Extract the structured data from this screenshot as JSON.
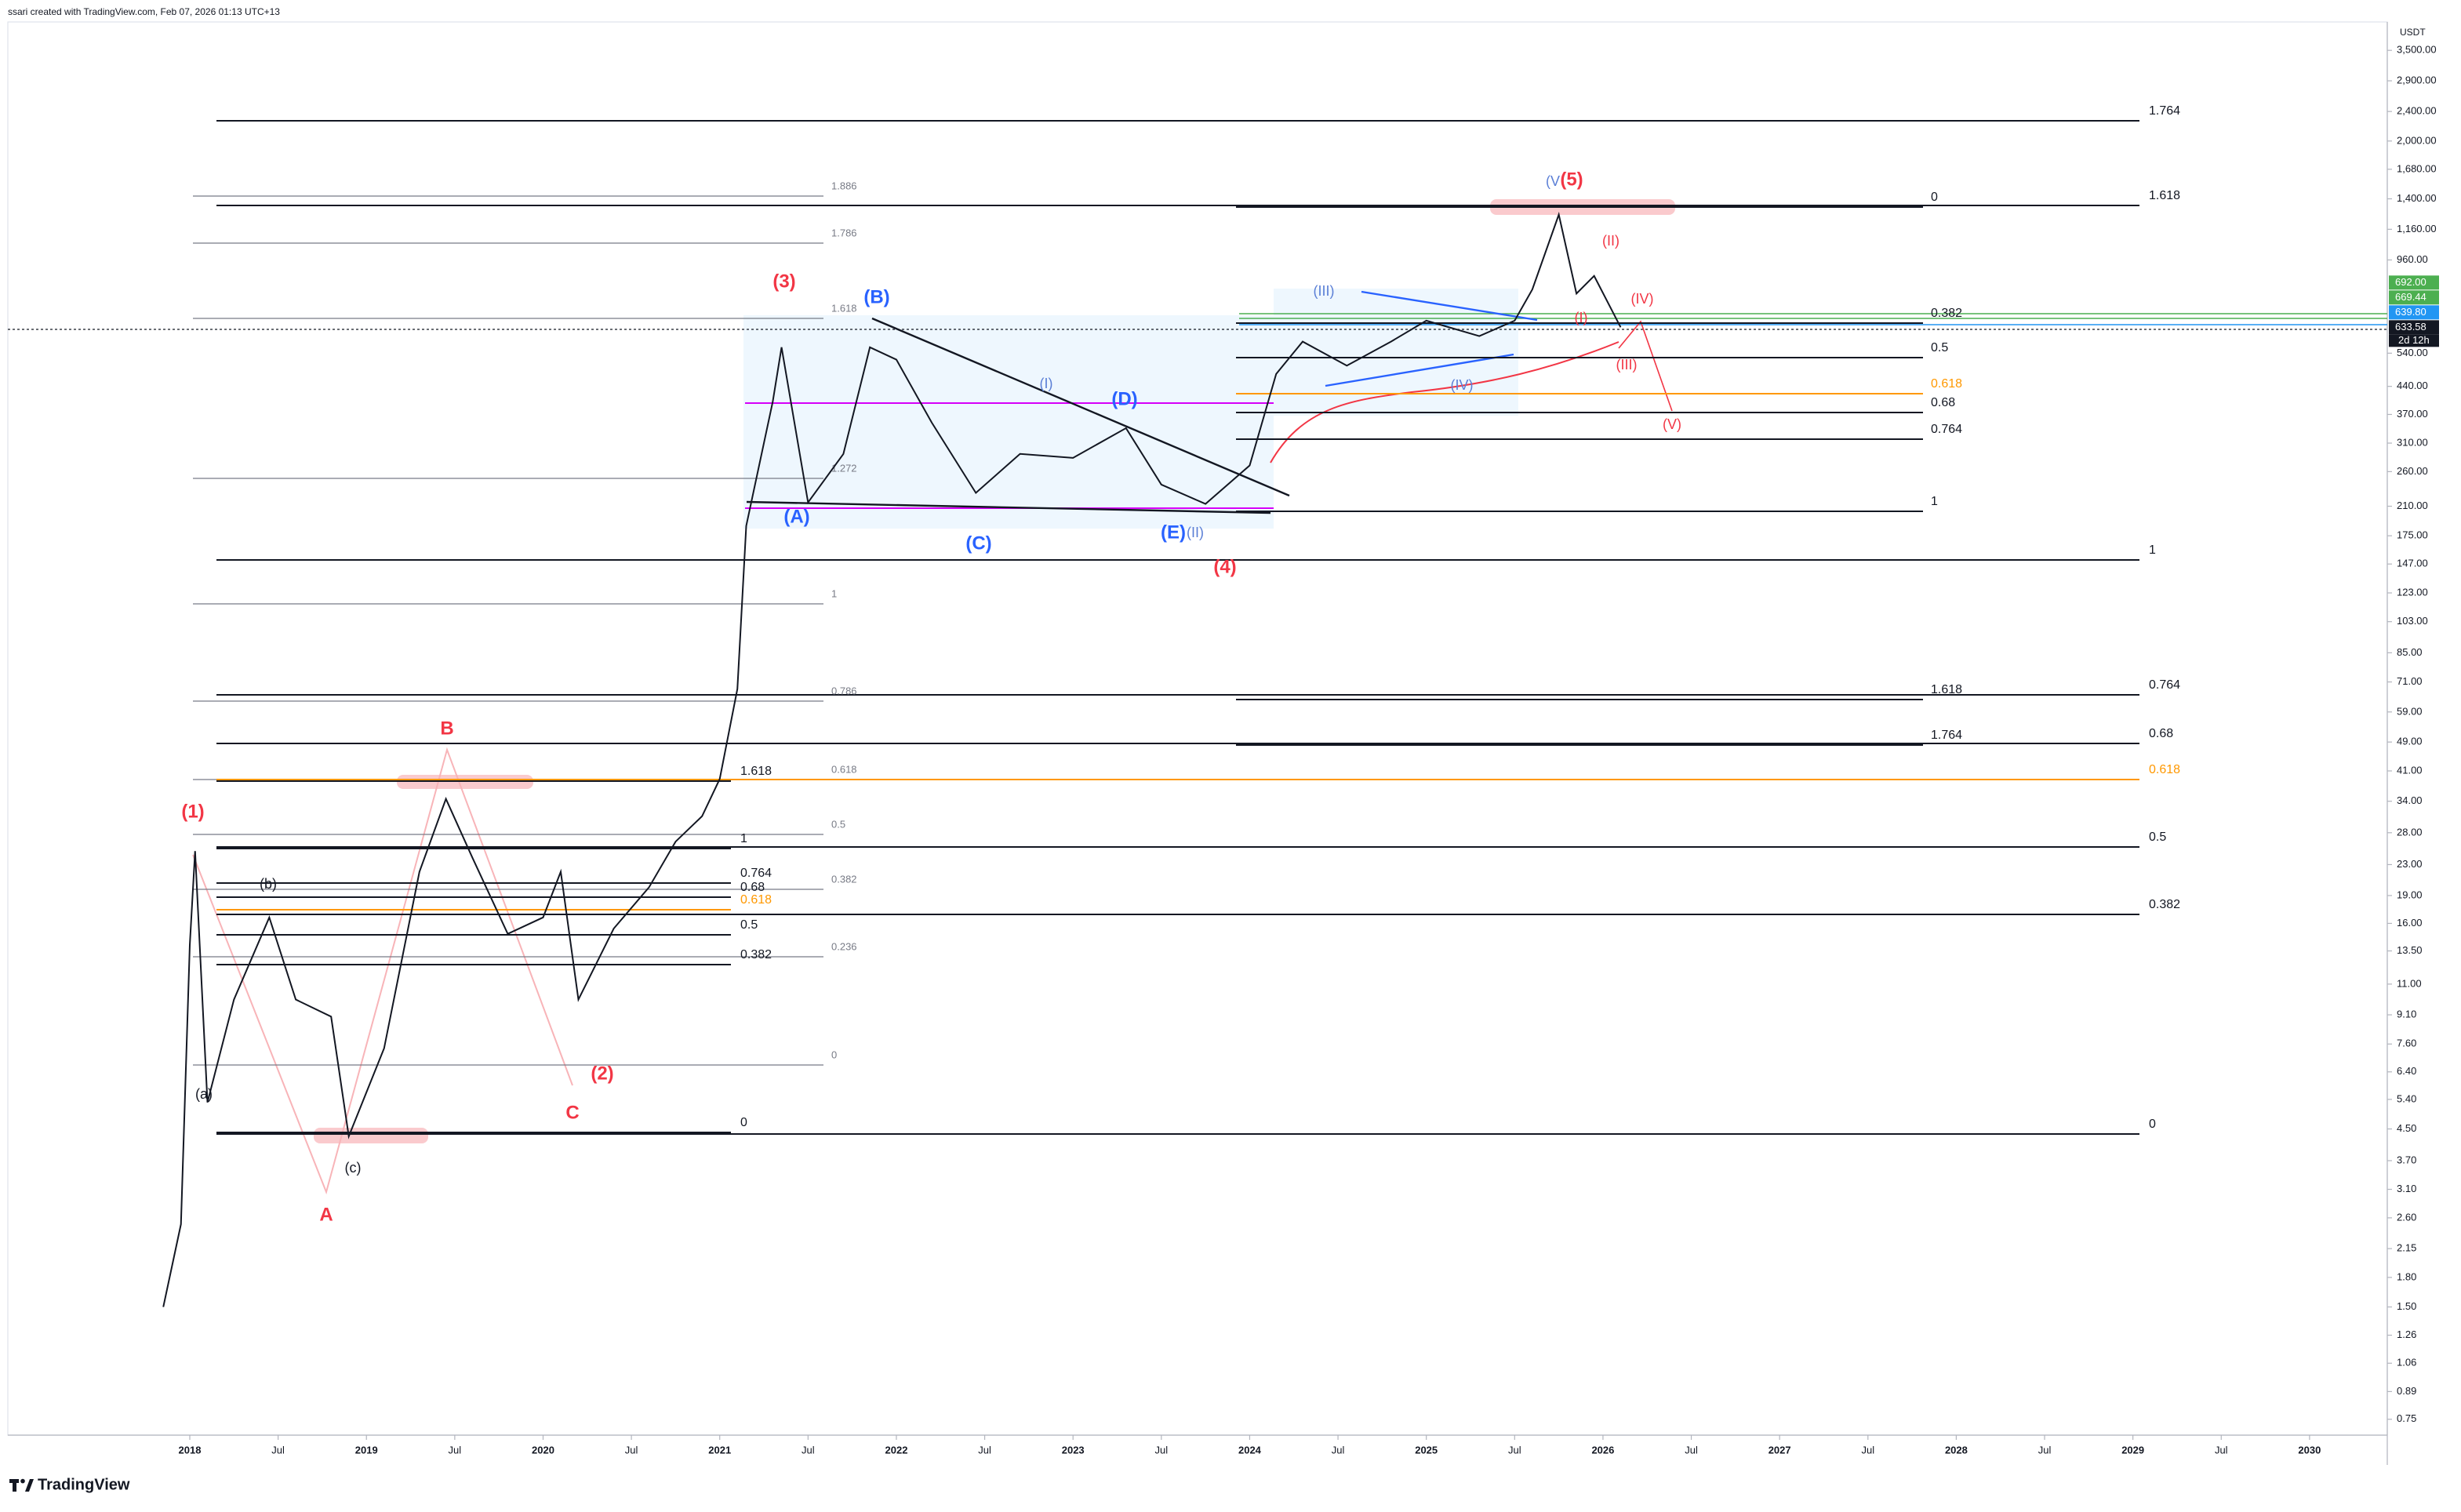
{
  "header": {
    "text": "ssari created with TradingView.com, Feb 07, 2026 01:13 UTC+13"
  },
  "footer": {
    "brand": "TradingView"
  },
  "currency": "USDT",
  "chart_data": {
    "type": "line",
    "log_scale": true,
    "color": "#131722",
    "x": [
      2017.85,
      2017.95,
      2018.0,
      2018.03,
      2018.1,
      2018.25,
      2018.45,
      2018.6,
      2018.8,
      2018.9,
      2019.1,
      2019.3,
      2019.45,
      2019.6,
      2019.8,
      2020.0,
      2020.1,
      2020.2,
      2020.4,
      2020.6,
      2020.75,
      2020.9,
      2021.0,
      2021.1,
      2021.15,
      2021.3,
      2021.35,
      2021.5,
      2021.7,
      2021.85,
      2022.0,
      2022.2,
      2022.45,
      2022.7,
      2023.0,
      2023.3,
      2023.5,
      2023.75,
      2024.0,
      2024.15,
      2024.3,
      2024.55,
      2024.8,
      2025.0,
      2025.3,
      2025.5,
      2025.6,
      2025.75,
      2025.85,
      2025.95,
      2026.1
    ],
    "values": [
      1.5,
      2.5,
      14,
      25,
      5.3,
      10,
      16.6,
      10,
      9,
      4.3,
      7.4,
      22,
      34.5,
      24,
      15,
      16.6,
      22,
      10,
      15.5,
      20,
      26.5,
      31,
      39,
      68,
      186,
      400,
      560,
      215,
      290,
      560,
      519,
      352,
      228,
      290,
      283,
      340,
      240,
      213,
      270,
      475,
      580,
      500,
      580,
      660,
      600,
      660,
      800,
      1270,
      780,
      870,
      633.58
    ],
    "xlim": [
      2016.97,
      2030.44
    ],
    "xticks": [
      {
        "value": 2018,
        "label": "2018"
      },
      {
        "value": 2018.5,
        "label": "Jul"
      },
      {
        "value": 2019,
        "label": "2019"
      },
      {
        "value": 2019.5,
        "label": "Jul"
      },
      {
        "value": 2020,
        "label": "2020"
      },
      {
        "value": 2020.5,
        "label": "Jul"
      },
      {
        "value": 2021,
        "label": "2021"
      },
      {
        "value": 2021.5,
        "label": "Jul"
      },
      {
        "value": 2022,
        "label": "2022"
      },
      {
        "value": 2022.5,
        "label": "Jul"
      },
      {
        "value": 2023,
        "label": "2023"
      },
      {
        "value": 2023.5,
        "label": "Jul"
      },
      {
        "value": 2024,
        "label": "2024"
      },
      {
        "value": 2024.5,
        "label": "Jul"
      },
      {
        "value": 2025,
        "label": "2025"
      },
      {
        "value": 2025.5,
        "label": "Jul"
      },
      {
        "value": 2026,
        "label": "2026"
      },
      {
        "value": 2026.5,
        "label": "Jul"
      },
      {
        "value": 2027,
        "label": "2027"
      },
      {
        "value": 2027.5,
        "label": "Jul"
      },
      {
        "value": 2028,
        "label": "2028"
      },
      {
        "value": 2028.5,
        "label": "Jul"
      },
      {
        "value": 2029,
        "label": "2029"
      },
      {
        "value": 2029.5,
        "label": "Jul"
      },
      {
        "value": 2030,
        "label": "2030"
      }
    ],
    "ylim": [
      0.68,
      4170
    ],
    "yticks": [
      {
        "value": 3500,
        "label": "3,500.00"
      },
      {
        "value": 2900,
        "label": "2,900.00"
      },
      {
        "value": 2400,
        "label": "2,400.00"
      },
      {
        "value": 2000,
        "label": "2,000.00"
      },
      {
        "value": 1680,
        "label": "1,680.00"
      },
      {
        "value": 1400,
        "label": "1,400.00"
      },
      {
        "value": 1160,
        "label": "1,160.00"
      },
      {
        "value": 960,
        "label": "960.00"
      },
      {
        "value": 540,
        "label": "540.00"
      },
      {
        "value": 440,
        "label": "440.00"
      },
      {
        "value": 370,
        "label": "370.00"
      },
      {
        "value": 310,
        "label": "310.00"
      },
      {
        "value": 260,
        "label": "260.00"
      },
      {
        "value": 210,
        "label": "210.00"
      },
      {
        "value": 175,
        "label": "175.00"
      },
      {
        "value": 147,
        "label": "147.00"
      },
      {
        "value": 123,
        "label": "123.00"
      },
      {
        "value": 103,
        "label": "103.00"
      },
      {
        "value": 85,
        "label": "85.00"
      },
      {
        "value": 71,
        "label": "71.00"
      },
      {
        "value": 59,
        "label": "59.00"
      },
      {
        "value": 49,
        "label": "49.00"
      },
      {
        "value": 41,
        "label": "41.00"
      },
      {
        "value": 34,
        "label": "34.00"
      },
      {
        "value": 28,
        "label": "28.00"
      },
      {
        "value": 23,
        "label": "23.00"
      },
      {
        "value": 19,
        "label": "19.00"
      },
      {
        "value": 16,
        "label": "16.00"
      },
      {
        "value": 13.5,
        "label": "13.50"
      },
      {
        "value": 11,
        "label": "11.00"
      },
      {
        "value": 9.1,
        "label": "9.10"
      },
      {
        "value": 7.6,
        "label": "7.60"
      },
      {
        "value": 6.4,
        "label": "6.40"
      },
      {
        "value": 5.4,
        "label": "5.40"
      },
      {
        "value": 4.5,
        "label": "4.50"
      },
      {
        "value": 3.7,
        "label": "3.70"
      },
      {
        "value": 3.1,
        "label": "3.10"
      },
      {
        "value": 2.6,
        "label": "2.60"
      },
      {
        "value": 2.15,
        "label": "2.15"
      },
      {
        "value": 1.8,
        "label": "1.80"
      },
      {
        "value": 1.5,
        "label": "1.50"
      },
      {
        "value": 1.26,
        "label": "1.26"
      },
      {
        "value": 1.06,
        "label": "1.06"
      },
      {
        "value": 0.89,
        "label": "0.89"
      },
      {
        "value": 0.75,
        "label": "0.75"
      }
    ],
    "price_tags": [
      {
        "value": 692,
        "label": "692.00",
        "color": "#4caf50"
      },
      {
        "value": 669.44,
        "label": "669.44",
        "color": "#4caf50"
      },
      {
        "value": 639.8,
        "label": "639.80",
        "color": "#2196f3"
      },
      {
        "value": 633.58,
        "label": "633.58",
        "color": "#131722"
      }
    ],
    "countdown": "2d 12h"
  },
  "annotations": {
    "wave_labels": [
      "(1)",
      "(2)",
      "(3)",
      "(4)",
      "(5)",
      "A",
      "B",
      "C",
      "(a)",
      "(b)",
      "(c)",
      "(A)",
      "(B)",
      "(C)",
      "(D)",
      "(E)",
      "(II)",
      "(I)",
      "(III)",
      "(IV)",
      "(V",
      "(II)",
      "(IV)",
      "(III)",
      "(V)",
      "(I)"
    ],
    "fib_upper_left": [
      "1.886",
      "1.786",
      "1.618",
      "1.272",
      "1",
      "0.786",
      "0.618",
      "0.5",
      "0.382",
      "0.236",
      "0"
    ],
    "fib_lower_left": [
      "1.618",
      "1",
      "0.764",
      "0.68",
      "0.618",
      "0.5",
      "0.382",
      "0"
    ],
    "fib_middle": [
      "0",
      "0.382",
      "0.5",
      "0.618",
      "0.68",
      "0.764",
      "1",
      "1.618",
      "1.764"
    ],
    "fib_right": [
      "1.764",
      "1.618",
      "1",
      "0.764",
      "0.68",
      "0.618",
      "0.5",
      "0.382",
      "0"
    ]
  }
}
